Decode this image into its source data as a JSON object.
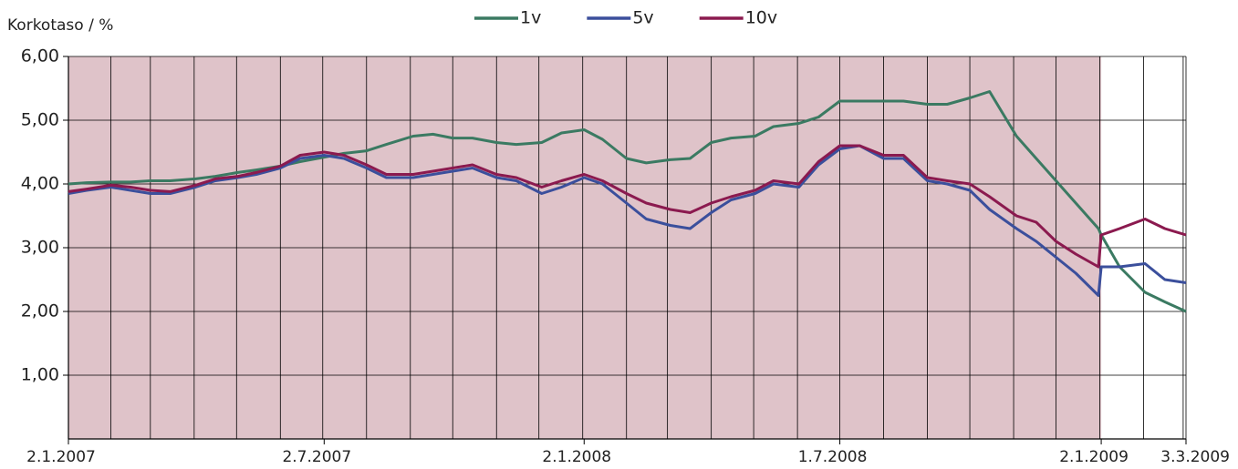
{
  "chart_data": {
    "type": "line",
    "ylabel": "Korkotaso / %",
    "x": [
      "2.1.2007",
      "15.1.2007",
      "1.2.2007",
      "15.2.2007",
      "1.3.2007",
      "15.3.2007",
      "2.4.2007",
      "16.4.2007",
      "2.5.2007",
      "15.5.2007",
      "1.6.2007",
      "15.6.2007",
      "2.7.2007",
      "16.7.2007",
      "1.8.2007",
      "15.8.2007",
      "3.9.2007",
      "17.9.2007",
      "1.10.2007",
      "15.10.2007",
      "1.11.2007",
      "15.11.2007",
      "3.12.2007",
      "17.12.2007",
      "2.1.2008",
      "15.1.2008",
      "1.2.2008",
      "15.2.2008",
      "3.3.2008",
      "17.3.2008",
      "1.4.2008",
      "15.4.2008",
      "2.5.2008",
      "15.5.2008",
      "2.6.2008",
      "16.6.2008",
      "1.7.2008",
      "15.7.2008",
      "1.8.2008",
      "15.8.2008",
      "1.9.2008",
      "15.9.2008",
      "1.10.2008",
      "15.10.2008",
      "3.11.2008",
      "17.11.2008",
      "1.12.2008",
      "15.12.2008",
      "31.12.2008",
      "2.1.2009",
      "15.1.2009",
      "2.2.2009",
      "16.2.2009",
      "3.3.2009"
    ],
    "series": [
      {
        "name": "1v",
        "color": "#3b7a62",
        "values": [
          4.0,
          4.02,
          4.03,
          4.03,
          4.05,
          4.05,
          4.08,
          4.12,
          4.18,
          4.22,
          4.28,
          4.35,
          4.42,
          4.48,
          4.52,
          4.62,
          4.75,
          4.78,
          4.72,
          4.72,
          4.65,
          4.62,
          4.65,
          4.8,
          4.85,
          4.7,
          4.4,
          4.33,
          4.38,
          4.4,
          4.65,
          4.72,
          4.75,
          4.9,
          4.95,
          5.05,
          5.3,
          5.3,
          5.3,
          5.3,
          5.25,
          5.25,
          5.35,
          5.45,
          4.75,
          4.4,
          4.05,
          3.7,
          3.3,
          3.2,
          2.7,
          2.3,
          2.15,
          2.0
        ]
      },
      {
        "name": "5v",
        "color": "#3b4f9c",
        "values": [
          3.85,
          3.9,
          3.95,
          3.9,
          3.85,
          3.85,
          3.95,
          4.05,
          4.1,
          4.15,
          4.25,
          4.4,
          4.45,
          4.4,
          4.25,
          4.1,
          4.1,
          4.15,
          4.2,
          4.25,
          4.1,
          4.05,
          3.85,
          3.95,
          4.1,
          4.0,
          3.7,
          3.45,
          3.35,
          3.3,
          3.55,
          3.75,
          3.85,
          4.0,
          3.95,
          4.3,
          4.55,
          4.6,
          4.4,
          4.4,
          4.05,
          4.0,
          3.9,
          3.6,
          3.3,
          3.1,
          2.85,
          2.6,
          2.25,
          2.7,
          2.7,
          2.75,
          2.5,
          2.45
        ]
      },
      {
        "name": "10v",
        "color": "#8b1a4f",
        "values": [
          3.88,
          3.92,
          3.98,
          3.95,
          3.9,
          3.88,
          3.98,
          4.08,
          4.12,
          4.18,
          4.28,
          4.45,
          4.5,
          4.45,
          4.3,
          4.15,
          4.15,
          4.2,
          4.25,
          4.3,
          4.15,
          4.1,
          3.95,
          4.05,
          4.15,
          4.05,
          3.85,
          3.7,
          3.6,
          3.55,
          3.7,
          3.8,
          3.9,
          4.05,
          4.0,
          4.35,
          4.6,
          4.6,
          4.45,
          4.45,
          4.1,
          4.05,
          4.0,
          3.8,
          3.5,
          3.4,
          3.1,
          2.9,
          2.7,
          3.2,
          3.3,
          3.45,
          3.3,
          3.2
        ]
      }
    ],
    "xlim": [
      "2.1.2007",
      "3.3.2009"
    ],
    "xticks": [
      "2.1.2007",
      "2.7.2007",
      "2.1.2008",
      "1.7.2008",
      "2.1.2009",
      "3.3.2009"
    ],
    "ylim": [
      0,
      6
    ],
    "yticks": [
      {
        "value": 1,
        "label": "1,00"
      },
      {
        "value": 2,
        "label": "2,00"
      },
      {
        "value": 3,
        "label": "3,00"
      },
      {
        "value": 4,
        "label": "4,00"
      },
      {
        "value": 5,
        "label": "5,00"
      },
      {
        "value": 6,
        "label": "6,00"
      }
    ],
    "grid": true,
    "shade": {
      "to": "2.1.2009",
      "color": "#dfc3c9"
    },
    "legend": "top"
  }
}
